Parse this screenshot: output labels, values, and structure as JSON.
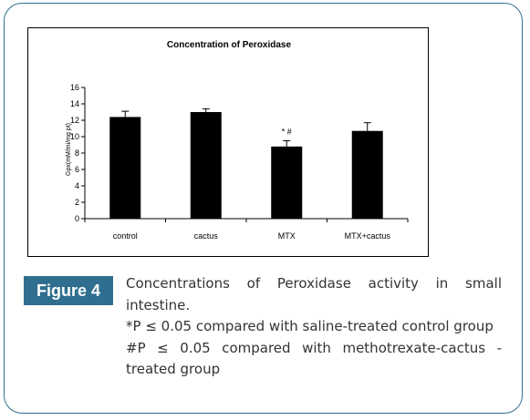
{
  "figure": {
    "label": "Figure 4",
    "caption_lines": [
      "Concentrations of Peroxidase activity in small intestine.",
      "*P ≤ 0.05 compared with saline-treated control group",
      "#P ≤ 0.05 compared with methotrexate-cactus -treated group"
    ]
  },
  "chart_data": {
    "type": "bar",
    "title": "Concentration of Peroxidase",
    "ylabel": "Gpx(mM/mi/mg pt)",
    "xlabel": "",
    "ylim": [
      0,
      16
    ],
    "yticks": [
      "0",
      "2",
      "4",
      "6",
      "8",
      "10",
      "12",
      "14",
      "16"
    ],
    "categories": [
      "control",
      "cactus",
      "MTX",
      "MTX+cactus"
    ],
    "values": [
      12.4,
      13.0,
      8.8,
      10.7
    ],
    "errors": [
      0.7,
      0.4,
      0.7,
      1.0
    ],
    "annotations": [
      "",
      "",
      "* #",
      ""
    ],
    "bar_color": "#000000",
    "grid": false,
    "legend": "none"
  }
}
